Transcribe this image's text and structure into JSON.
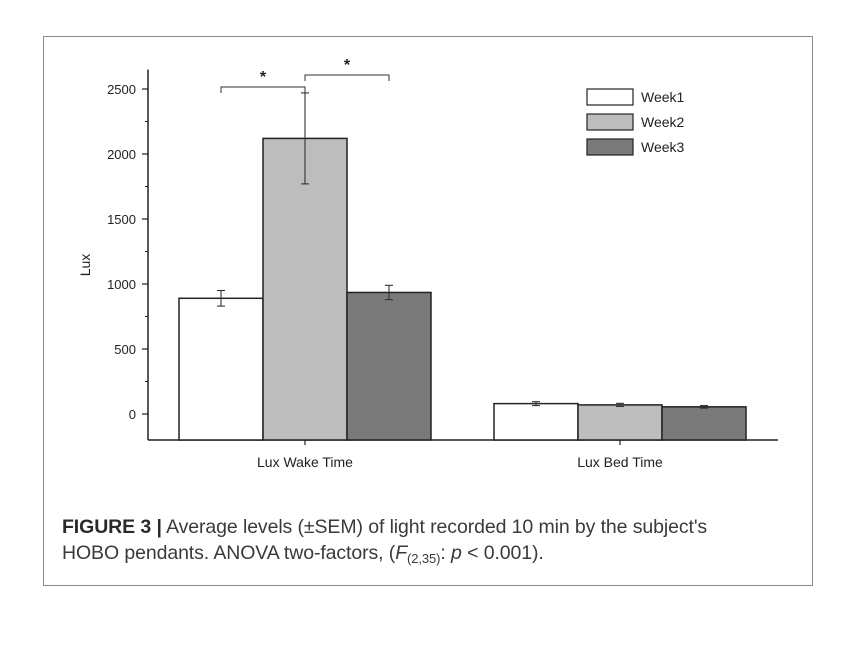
{
  "chart_data": {
    "type": "bar",
    "ylabel": "Lux",
    "ylim": [
      -200,
      2650
    ],
    "yticks": [
      0,
      500,
      1000,
      1500,
      2000,
      2500
    ],
    "categories": [
      "Lux Wake Time",
      "Lux Bed Time"
    ],
    "series": [
      {
        "name": "Week1",
        "values": [
          890,
          80
        ],
        "errors": [
          60,
          15
        ],
        "color": "#ffffff"
      },
      {
        "name": "Week2",
        "values": [
          2120,
          70
        ],
        "errors": [
          350,
          12
        ],
        "color": "#bdbdbd"
      },
      {
        "name": "Week3",
        "values": [
          935,
          55
        ],
        "errors": [
          55,
          10
        ],
        "color": "#7a7a7a"
      }
    ],
    "significance": [
      {
        "from_series": 0,
        "to_series": 1,
        "category": 0,
        "label": "*"
      },
      {
        "from_series": 1,
        "to_series": 2,
        "category": 0,
        "label": "*"
      }
    ],
    "legend_position": "top-right"
  },
  "caption": {
    "label": "FIGURE 3 |",
    "text1": "Average levels (±SEM) of light recorded 10 min by the subject's",
    "text2a": "HOBO pendants. ANOVA two-factors, (",
    "F": "F",
    "sub": "(2,35)",
    "colon": ": ",
    "p": "p",
    "text2b": " < 0.001)."
  }
}
